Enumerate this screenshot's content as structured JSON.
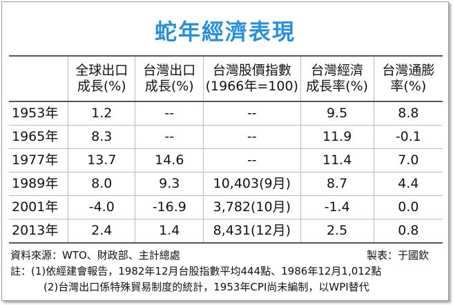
{
  "title": "蛇年經濟表現",
  "table": {
    "header": [
      [
        "",
        ""
      ],
      [
        "全球出口",
        "成長(%)"
      ],
      [
        "台灣出口",
        "成長(%)"
      ],
      [
        "台灣股價指數",
        "(1966年=100)"
      ],
      [
        "台灣經濟",
        "成長率(%)"
      ],
      [
        "台灣通膨",
        "率(%)"
      ]
    ],
    "rows": [
      [
        "1953年",
        "1.2",
        "--",
        "--",
        "9.5",
        "8.8"
      ],
      [
        "1965年",
        "8.3",
        "--",
        "--",
        "11.9",
        "-0.1"
      ],
      [
        "1977年",
        "13.7",
        "14.6",
        "--",
        "11.4",
        "7.0"
      ],
      [
        "1989年",
        "8.0",
        "9.3",
        "10,403(9月)",
        "8.7",
        "4.4"
      ],
      [
        "2001年",
        "-4.0",
        "-16.9",
        "3,782(10月)",
        "-1.4",
        "0.0"
      ],
      [
        "2013年",
        "2.4",
        "1.4",
        "8,431(12月)",
        "2.5",
        "0.8"
      ]
    ]
  },
  "footer": {
    "source": "資料來源：WTO、財政部、主計總處",
    "maker": "製表：于國欽",
    "notes": [
      "註：(1)依經建會報告，1982年12月台股指數平均444點、1986年12月1,012點",
      "(2)台灣出口係特殊貿易制度的統計，1953年CPI尚未編制，以WPI替代"
    ]
  }
}
